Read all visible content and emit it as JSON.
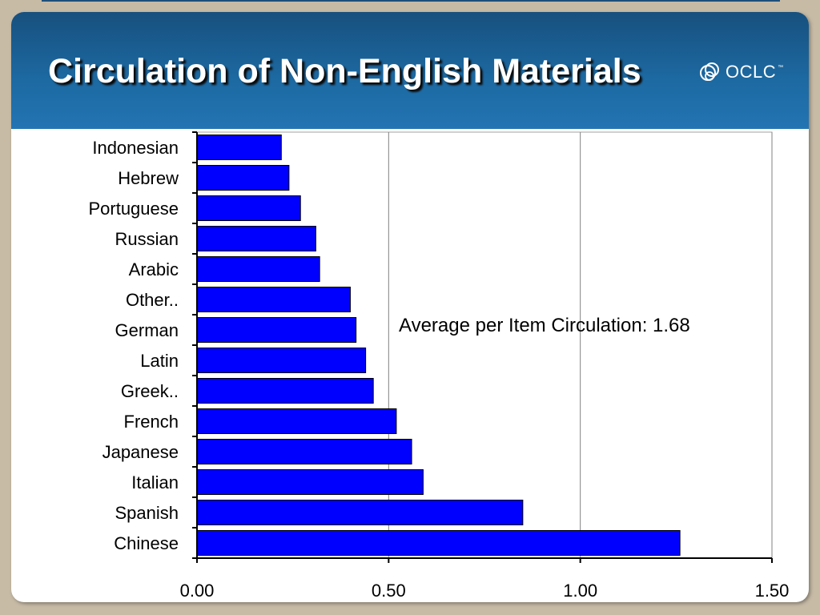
{
  "slide": {
    "title": "Circulation of Non-English Materials",
    "logo_text": "OCLC"
  },
  "colors": {
    "bar": "#0000ff",
    "header": "#1d6aa3",
    "background": "#c7bba6"
  },
  "chart_data": {
    "type": "bar",
    "orientation": "horizontal",
    "categories": [
      "Indonesian",
      "Hebrew",
      "Portuguese",
      "Russian",
      "Arabic",
      "Other..",
      "German",
      "Latin",
      "Greek..",
      "French",
      "Japanese",
      "Italian",
      "Spanish",
      "Chinese"
    ],
    "values": [
      0.22,
      0.24,
      0.27,
      0.31,
      0.32,
      0.4,
      0.415,
      0.44,
      0.46,
      0.52,
      0.56,
      0.59,
      0.85,
      1.26
    ],
    "xlim": [
      0,
      1.5
    ],
    "xticks": [
      "0.00",
      "0.50",
      "1.00",
      "1.50"
    ],
    "xtick_values": [
      0,
      0.5,
      1.0,
      1.5
    ],
    "grid": "vertical",
    "legend": "none",
    "annotation": "Average per Item Circulation: 1.68"
  }
}
